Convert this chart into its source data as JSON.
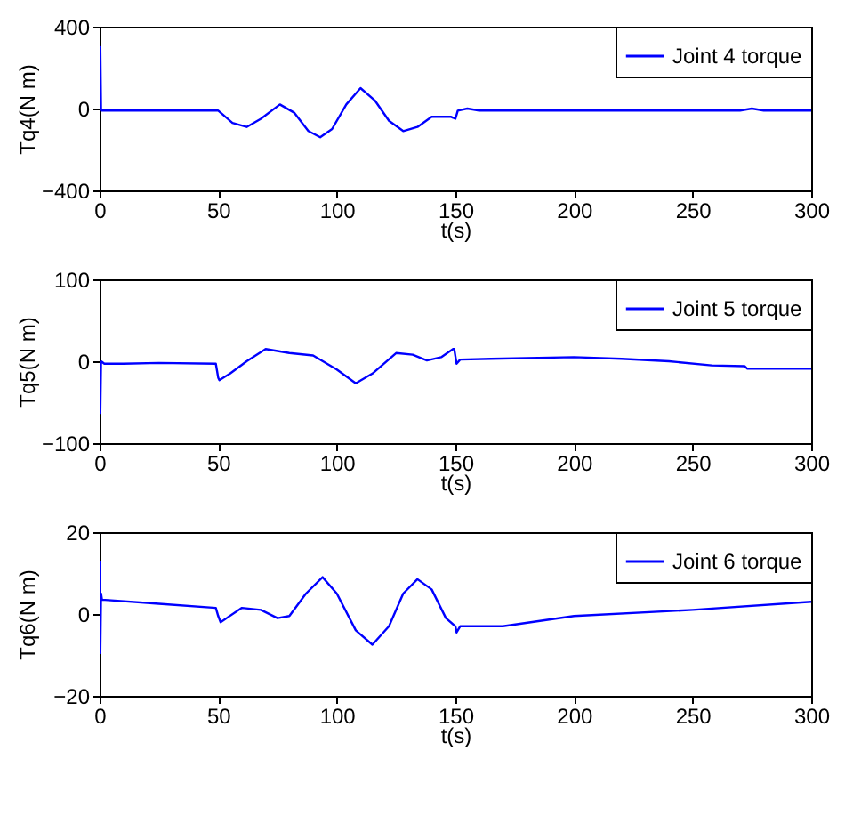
{
  "chart_data": [
    {
      "type": "line",
      "xlabel": "t(s)",
      "ylabel": "Tq4(N m)",
      "xlim": [
        0,
        300
      ],
      "xticks": [
        0,
        50,
        100,
        150,
        200,
        250,
        300
      ],
      "ylim": [
        -400,
        400
      ],
      "yticks": [
        -400,
        0,
        400
      ],
      "grid": false,
      "legend": "top right",
      "marker": "none",
      "line_style": "solid",
      "x": [
        0,
        0.3,
        0.6,
        10,
        30,
        50,
        52,
        56,
        62,
        68,
        76,
        82,
        88,
        93,
        98,
        104,
        110,
        116,
        122,
        128,
        134,
        140,
        145,
        148,
        150,
        151,
        155,
        160,
        165,
        200,
        250,
        270,
        275,
        280,
        285,
        300
      ],
      "series": [
        {
          "name": "Joint 4 torque",
          "color": "#0000ff",
          "values": [
            -10,
            300,
            -10,
            -10,
            -10,
            -10,
            -30,
            -70,
            -90,
            -50,
            20,
            -20,
            -110,
            -140,
            -100,
            20,
            100,
            40,
            -60,
            -110,
            -90,
            -40,
            -40,
            -40,
            -50,
            -10,
            0,
            -10,
            -10,
            -10,
            -10,
            -10,
            0,
            -10,
            -10,
            -10
          ]
        }
      ]
    },
    {
      "type": "line",
      "xlabel": "t(s)",
      "ylabel": "Tq5(N m)",
      "xlim": [
        0,
        300
      ],
      "xticks": [
        0,
        50,
        100,
        150,
        200,
        250,
        300
      ],
      "ylim": [
        -100,
        100
      ],
      "yticks": [
        -100,
        0,
        100
      ],
      "grid": false,
      "legend": "top right",
      "marker": "none",
      "line_style": "solid",
      "x": [
        0,
        0.3,
        0.6,
        2,
        10,
        25,
        49,
        50,
        50.5,
        55,
        62,
        70,
        80,
        90,
        100,
        108,
        115,
        125,
        132,
        138,
        144,
        149,
        149.5,
        150.5,
        152,
        165,
        200,
        220,
        240,
        258,
        272,
        273,
        300
      ],
      "series": [
        {
          "name": "Joint 5 torque",
          "color": "#0000ff",
          "values": [
            0,
            -63,
            0,
            -3,
            -3,
            -2,
            -3,
            -20,
            -23,
            -15,
            0,
            15,
            10,
            7,
            -10,
            -27,
            -15,
            10,
            8,
            1,
            5,
            15,
            15,
            -3,
            2,
            3,
            5,
            3,
            0,
            -5,
            -6,
            -9,
            -9
          ]
        }
      ]
    },
    {
      "type": "line",
      "xlabel": "t(s)",
      "ylabel": "Tq6(N m)",
      "xlim": [
        0,
        300
      ],
      "xticks": [
        0,
        50,
        100,
        150,
        200,
        250,
        300
      ],
      "ylim": [
        -20,
        20
      ],
      "yticks": [
        -20,
        0,
        20
      ],
      "grid": false,
      "legend": "top right",
      "marker": "none",
      "line_style": "solid",
      "x": [
        0,
        0.3,
        0.6,
        1,
        25,
        49,
        50,
        51,
        60,
        68,
        75,
        80,
        87,
        94,
        100,
        108,
        115,
        122,
        128,
        134,
        140,
        146,
        150,
        150.5,
        152,
        170,
        200,
        250,
        300
      ],
      "series": [
        {
          "name": "Joint 6 torque",
          "color": "#0000ff",
          "values": [
            13,
            -9.5,
            5,
            3.5,
            2.5,
            1.5,
            -0.5,
            -2,
            1.5,
            1,
            -1,
            -0.5,
            5,
            9,
            5,
            -4,
            -7.5,
            -3,
            5,
            8.5,
            6,
            -1,
            -3,
            -4.5,
            -3,
            -3,
            -0.5,
            1,
            3
          ]
        }
      ]
    }
  ]
}
